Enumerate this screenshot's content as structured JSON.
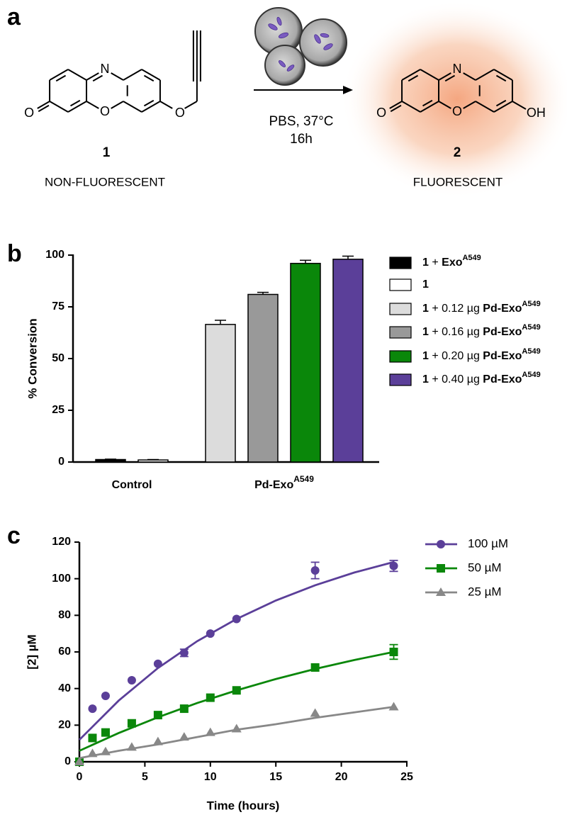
{
  "panel_labels": [
    "a",
    "b",
    "c"
  ],
  "scheme": {
    "compound_1": {
      "number": "1",
      "caption": "NON-FLUORESCENT",
      "atoms": [
        "N",
        "O",
        "O",
        "O"
      ]
    },
    "compound_2": {
      "number": "2",
      "caption": "FLUORESCENT",
      "atoms": [
        "N",
        "O",
        "O",
        "OH"
      ]
    },
    "conditions": [
      "PBS, 37°C",
      "16h"
    ]
  },
  "chart_data": [
    {
      "type": "bar",
      "y_label": "% Conversion",
      "categories": [
        [
          "Control"
        ],
        [
          "Pd-Exo",
          "A549"
        ]
      ],
      "ylim": [
        0,
        100
      ],
      "yticks": [
        0,
        25,
        50,
        75,
        100
      ],
      "series": [
        {
          "name": [
            "1",
            " + ",
            "Exo",
            "A549"
          ],
          "color": "#000000",
          "values": [
            1.2,
            null
          ],
          "errors": [
            0.2,
            null
          ]
        },
        {
          "name": [
            "1"
          ],
          "color": "#ffffff",
          "values": [
            1.0,
            null
          ],
          "errors": [
            0.2,
            null
          ]
        },
        {
          "name": [
            "1",
            " + 0.12 µg ",
            "Pd-Exo",
            "A549"
          ],
          "color": "#dcdcdc",
          "values": [
            null,
            66.5
          ],
          "errors": [
            null,
            2
          ]
        },
        {
          "name": [
            "1",
            " + 0.16 µg ",
            "Pd-Exo",
            "A549"
          ],
          "color": "#999999",
          "values": [
            null,
            81
          ],
          "errors": [
            null,
            1
          ]
        },
        {
          "name": [
            "1",
            " + 0.20 µg ",
            "Pd-Exo",
            "A549"
          ],
          "color": "#0a870a",
          "values": [
            null,
            96
          ],
          "errors": [
            null,
            1.5
          ]
        },
        {
          "name": [
            "1",
            " + 0.40 µg ",
            "Pd-Exo",
            "A549"
          ],
          "color": "#5b3f99",
          "values": [
            null,
            98
          ],
          "errors": [
            null,
            1.5
          ]
        }
      ]
    },
    {
      "type": "scatter",
      "x_label": "Time (hours)",
      "y_label": "[2] µM",
      "x": [
        0,
        1,
        2,
        4,
        6,
        8,
        10,
        12,
        18,
        24
      ],
      "xlim": [
        0,
        25
      ],
      "xticks": [
        0,
        5,
        10,
        15,
        20,
        25
      ],
      "ylim": [
        0,
        120
      ],
      "yticks": [
        0,
        20,
        40,
        60,
        80,
        100,
        120
      ],
      "fit_x": [
        0,
        3,
        6,
        9,
        12,
        15,
        18,
        21,
        24
      ],
      "series": [
        {
          "name": "100 µM",
          "color": "#5b3f99",
          "marker": "circle",
          "values": [
            0,
            29,
            36,
            44.5,
            53.5,
            59.5,
            70,
            78,
            104.5,
            107
          ],
          "errors": [
            null,
            null,
            null,
            null,
            null,
            2,
            null,
            null,
            4.5,
            3
          ],
          "fit_values": [
            12,
            33.4,
            51.2,
            65.9,
            78,
            88.1,
            96.4,
            103.4,
            109.1
          ]
        },
        {
          "name": "50 µM",
          "color": "#0a870a",
          "marker": "square",
          "values": [
            0,
            13,
            16,
            21,
            25.5,
            29,
            35,
            39,
            51.5,
            60
          ],
          "errors": [
            null,
            null,
            null,
            null,
            null,
            null,
            null,
            null,
            null,
            4
          ],
          "fit_values": [
            6,
            15.7,
            24.3,
            32.1,
            39,
            45.2,
            50.7,
            55.6,
            60
          ]
        },
        {
          "name": "25 µM",
          "color": "#888888",
          "marker": "triangle",
          "values": [
            0,
            4.5,
            5.5,
            8,
            11,
            13.5,
            16,
            18,
            26.5,
            30
          ],
          "errors": [
            null,
            null,
            null,
            null,
            null,
            null,
            null,
            null,
            null,
            null
          ],
          "fit_values": [
            2,
            6,
            9.5,
            13.5,
            17.5,
            20.5,
            24,
            27,
            30
          ]
        }
      ]
    }
  ]
}
